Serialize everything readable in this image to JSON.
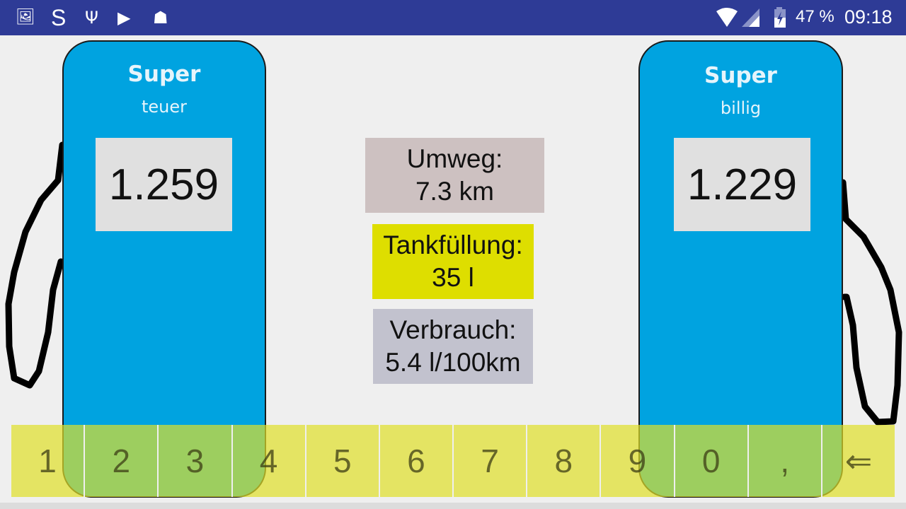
{
  "status_bar": {
    "left_icons": [
      "gallery-icon",
      "s-app-icon",
      "usb-icon",
      "play-store-icon",
      "android-debug-icon"
    ],
    "right_icons": [
      "wifi-icon",
      "signal-icon",
      "battery-charging-icon"
    ],
    "battery": "47 %",
    "time": "09:18",
    "background": "#2e3b96"
  },
  "pumps": [
    {
      "title": "Super",
      "subtitle": "teuer",
      "price": "1.259"
    },
    {
      "title": "Super",
      "subtitle": "billig",
      "price": "1.229"
    }
  ],
  "info": {
    "detour": {
      "label": "Umweg:",
      "value": "7.3 km",
      "color": "#cdc1c1"
    },
    "fill": {
      "label": "Tankfüllung:",
      "value": "35 l",
      "color": "#dede00"
    },
    "consumption": {
      "label": "Verbrauch:",
      "value": "5.4 l/100km",
      "color": "#c2c2ce"
    }
  },
  "keypad": {
    "keys": [
      "1",
      "2",
      "3",
      "4",
      "5",
      "6",
      "7",
      "8",
      "9",
      "0",
      ",",
      "⇐"
    ],
    "color": "#e6e66a"
  },
  "colors": {
    "pump": "#00a3e0",
    "price_box": "#e0e0e0"
  }
}
